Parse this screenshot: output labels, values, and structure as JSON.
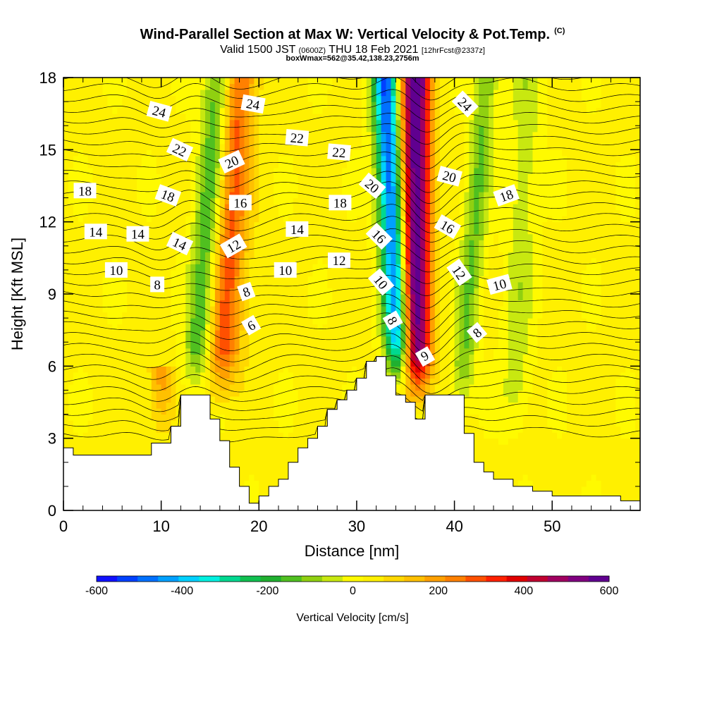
{
  "header": {
    "title": "Wind-Parallel Section at Max W: Vertical Velocity & Pot.Temp.",
    "title_mark": "(C)",
    "valid_a": "Valid 1500 JST",
    "valid_z": "(0600Z)",
    "valid_b": "THU 18 Feb 2021",
    "fcst": "[12hrFcst@2337z]",
    "box": "boxWmax=562@35.42,138.23,2756m"
  },
  "chart_data": {
    "type": "heatmap",
    "xlabel": "Distance [nm]",
    "ylabel": "Height [Kft MSL]",
    "xlim": [
      0,
      59
    ],
    "ylim": [
      0,
      18
    ],
    "x_ticks": [
      "0",
      "10",
      "20",
      "30",
      "40",
      "50"
    ],
    "x_tick_values": [
      0,
      10,
      20,
      30,
      40,
      50
    ],
    "y_ticks": [
      "0",
      "3",
      "6",
      "9",
      "12",
      "15",
      "18"
    ],
    "y_tick_values": [
      0,
      3,
      6,
      9,
      12,
      15,
      18
    ],
    "colorbar": {
      "label": "Vertical Velocity [cm/s]",
      "range": [
        -600,
        600
      ],
      "tick_labels": [
        "-600",
        "-400",
        "-200",
        "0",
        "200",
        "400",
        "600"
      ],
      "tick_values": [
        -600,
        -400,
        -200,
        0,
        200,
        400,
        600
      ],
      "colors": [
        "#1010ff",
        "#0040ff",
        "#0070ff",
        "#00a0ff",
        "#00d0ff",
        "#00f0e0",
        "#00d890",
        "#10c050",
        "#20b030",
        "#50c020",
        "#90d010",
        "#c8e810",
        "#fffa00",
        "#fff000",
        "#ffd800",
        "#ffc000",
        "#ffa000",
        "#ff8000",
        "#ff5000",
        "#ff2000",
        "#e00000",
        "#c00030",
        "#a00060",
        "#800080",
        "#600090"
      ]
    },
    "terrain_profile": {
      "x": [
        0,
        1,
        8,
        9,
        11,
        12,
        14,
        15,
        16,
        17,
        18,
        19,
        20,
        21,
        22,
        23,
        24,
        25,
        26,
        27,
        28,
        29,
        30,
        31,
        32,
        33,
        34,
        35,
        36,
        37,
        40,
        41,
        42,
        43,
        44,
        46,
        48,
        50,
        57,
        59
      ],
      "y": [
        2.6,
        2.3,
        2.3,
        2.8,
        3.5,
        4.8,
        4.8,
        3.8,
        2.9,
        1.8,
        1.0,
        0.3,
        0.6,
        1.0,
        1.3,
        2.0,
        2.6,
        3.0,
        3.5,
        4.2,
        4.6,
        5.0,
        5.5,
        6.2,
        6.4,
        5.6,
        4.8,
        4.5,
        3.8,
        4.8,
        4.8,
        3.2,
        2.0,
        1.6,
        1.3,
        1.0,
        0.8,
        0.6,
        0.4,
        0.3
      ]
    },
    "vertical_velocity_features": [
      {
        "x_base": 13.5,
        "y_base": 4.8,
        "lean": 0.18,
        "amplitude": -220,
        "width": 1.4,
        "y_top": 18
      },
      {
        "x_base": 16.0,
        "y_base": 4.5,
        "lean": 0.15,
        "amplitude": 250,
        "width": 1.8,
        "y_top": 18
      },
      {
        "x_base": 34.5,
        "y_base": 5.0,
        "lean": -0.12,
        "amplitude": -560,
        "width": 1.3,
        "y_top": 18
      },
      {
        "x_base": 36.0,
        "y_base": 4.5,
        "lean": 0.0,
        "amplitude": 562,
        "width": 1.6,
        "y_top": 18
      },
      {
        "x_base": 40.5,
        "y_base": 4.0,
        "lean": 0.2,
        "amplitude": -160,
        "width": 1.2,
        "y_top": 18
      },
      {
        "x_base": 46.0,
        "y_base": 3.0,
        "lean": 0.1,
        "amplitude": -90,
        "width": 1.5,
        "y_top": 18
      },
      {
        "x_base": 10.0,
        "y_base": 3.0,
        "lean": 0.0,
        "amplitude": 150,
        "width": 1.2,
        "y_top": 6
      }
    ],
    "potential_temperature_isolines": [
      {
        "value": "6",
        "base_height": 7.6
      },
      {
        "value": "8",
        "base_height": 8.8
      },
      {
        "value": "10",
        "base_height": 10.1
      },
      {
        "value": "12",
        "base_height": 11.0
      },
      {
        "value": "14",
        "base_height": 11.8
      },
      {
        "value": "16",
        "base_height": 12.8
      },
      {
        "value": "18",
        "base_height": 13.4
      },
      {
        "value": "20",
        "base_height": 14.3
      },
      {
        "value": "22",
        "base_height": 15.6
      },
      {
        "value": "24",
        "base_height": 16.6
      }
    ],
    "contour_labels": [
      {
        "text": "24",
        "x": 9.8,
        "y": 16.6,
        "rotate": 15
      },
      {
        "text": "24",
        "x": 19.4,
        "y": 16.9,
        "rotate": 10
      },
      {
        "text": "24",
        "x": 41.1,
        "y": 16.9,
        "rotate": 45
      },
      {
        "text": "22",
        "x": 11.9,
        "y": 15.0,
        "rotate": 25
      },
      {
        "text": "22",
        "x": 23.9,
        "y": 15.5,
        "rotate": 5
      },
      {
        "text": "22",
        "x": 28.2,
        "y": 14.9,
        "rotate": 5
      },
      {
        "text": "20",
        "x": 17.2,
        "y": 14.5,
        "rotate": -25
      },
      {
        "text": "20",
        "x": 31.6,
        "y": 13.5,
        "rotate": 40
      },
      {
        "text": "20",
        "x": 39.5,
        "y": 13.9,
        "rotate": 15
      },
      {
        "text": "18",
        "x": 2.2,
        "y": 13.3,
        "rotate": 0
      },
      {
        "text": "18",
        "x": 10.7,
        "y": 13.1,
        "rotate": 20
      },
      {
        "text": "18",
        "x": 28.3,
        "y": 12.8,
        "rotate": 0
      },
      {
        "text": "18",
        "x": 45.3,
        "y": 13.1,
        "rotate": -20
      },
      {
        "text": "16",
        "x": 18.1,
        "y": 12.8,
        "rotate": 0
      },
      {
        "text": "16",
        "x": 32.3,
        "y": 11.4,
        "rotate": 45
      },
      {
        "text": "16",
        "x": 39.3,
        "y": 11.8,
        "rotate": 30
      },
      {
        "text": "14",
        "x": 3.3,
        "y": 11.6,
        "rotate": 0
      },
      {
        "text": "14",
        "x": 7.6,
        "y": 11.5,
        "rotate": 0
      },
      {
        "text": "14",
        "x": 11.9,
        "y": 11.1,
        "rotate": 25
      },
      {
        "text": "14",
        "x": 23.9,
        "y": 11.7,
        "rotate": 0
      },
      {
        "text": "12",
        "x": 17.4,
        "y": 11.0,
        "rotate": -30
      },
      {
        "text": "12",
        "x": 28.2,
        "y": 10.4,
        "rotate": 0
      },
      {
        "text": "12",
        "x": 40.5,
        "y": 9.9,
        "rotate": 55
      },
      {
        "text": "10",
        "x": 5.4,
        "y": 10.0,
        "rotate": 0
      },
      {
        "text": "10",
        "x": 22.7,
        "y": 10.0,
        "rotate": 0
      },
      {
        "text": "10",
        "x": 32.5,
        "y": 9.5,
        "rotate": 50
      },
      {
        "text": "10",
        "x": 44.6,
        "y": 9.4,
        "rotate": -15
      },
      {
        "text": "8",
        "x": 9.6,
        "y": 9.4,
        "rotate": 0
      },
      {
        "text": "8",
        "x": 18.7,
        "y": 9.1,
        "rotate": -20
      },
      {
        "text": "8",
        "x": 33.7,
        "y": 7.9,
        "rotate": 60
      },
      {
        "text": "8",
        "x": 42.3,
        "y": 7.4,
        "rotate": -40
      },
      {
        "text": "6",
        "x": 19.2,
        "y": 7.7,
        "rotate": -30
      },
      {
        "text": "6",
        "x": 37.0,
        "y": 6.4,
        "rotate": 150
      }
    ]
  }
}
